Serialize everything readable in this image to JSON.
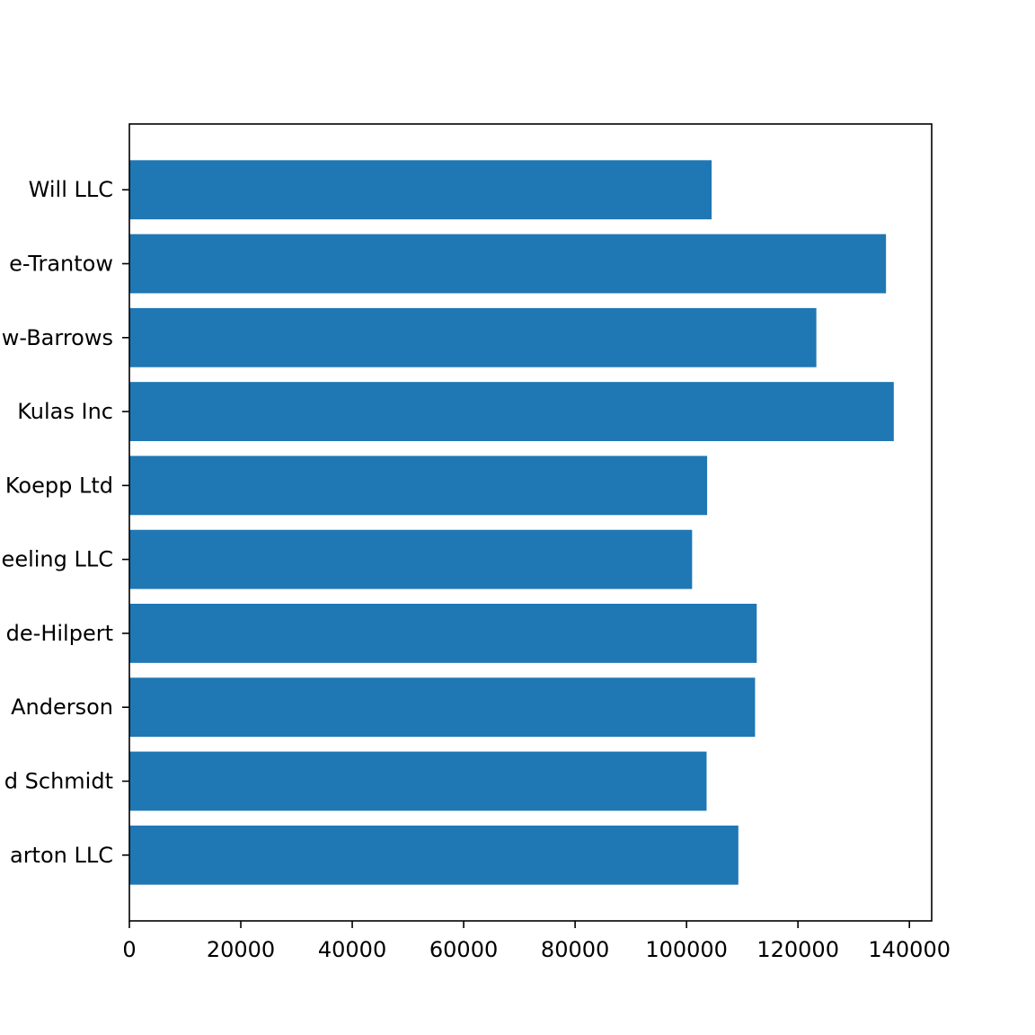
{
  "chart_data": {
    "type": "bar",
    "orientation": "horizontal",
    "title": "",
    "xlabel": "",
    "ylabel": "",
    "categories": [
      "Will LLC",
      "e-Trantow",
      "w-Barrows",
      "Kulas Inc",
      "Koepp Ltd",
      "eeling LLC",
      "de-Hilpert",
      "Anderson",
      "d Schmidt",
      "arton LLC"
    ],
    "values": [
      104500,
      135800,
      123300,
      137200,
      103700,
      101000,
      112600,
      112300,
      103600,
      109300
    ],
    "xlim": [
      0,
      144000
    ],
    "x_ticks": [
      0,
      20000,
      40000,
      60000,
      80000,
      100000,
      120000,
      140000
    ],
    "x_tick_labels": [
      "0",
      "20000",
      "40000",
      "60000",
      "80000",
      "100000",
      "120000",
      "140000"
    ],
    "grid": false,
    "legend": "none",
    "colors": {
      "bar": "#1f77b4",
      "axes": "#000000",
      "background": "#ffffff"
    }
  }
}
